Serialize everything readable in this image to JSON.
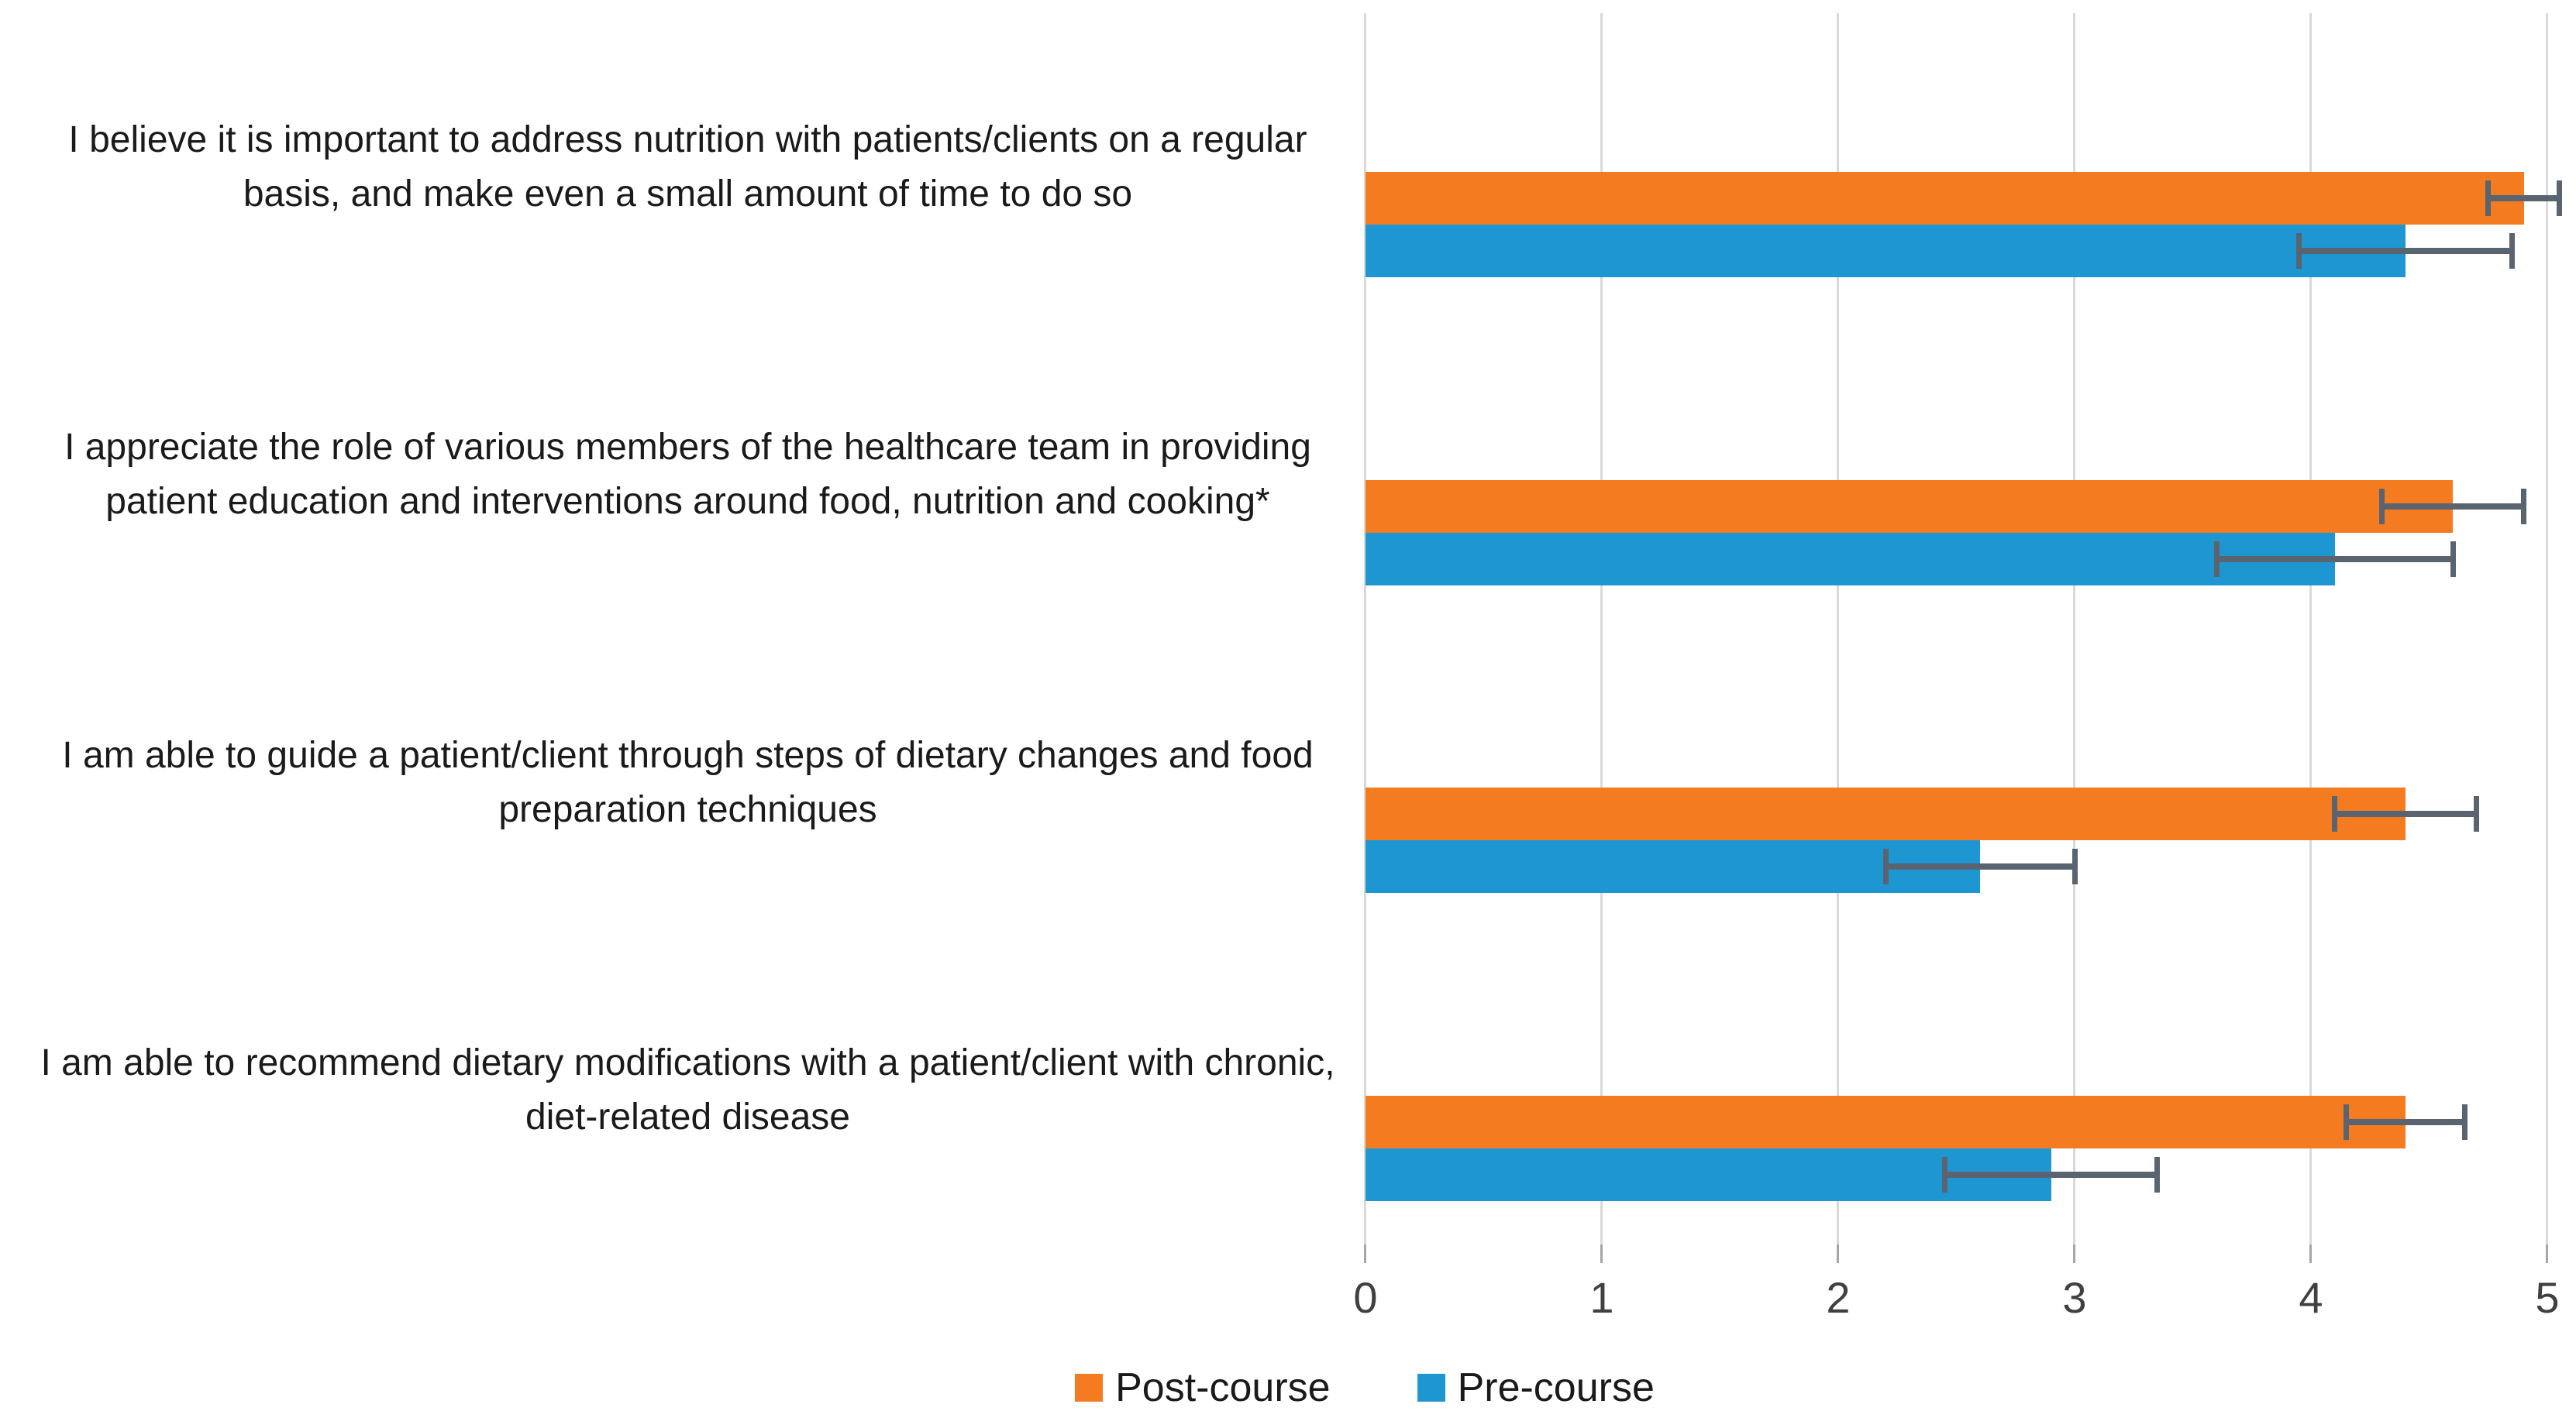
{
  "chart_data": {
    "type": "bar",
    "orientation": "horizontal",
    "categories": [
      "I believe it is important to address nutrition with patients/clients on a regular basis, and make even a small amount of time to do so",
      "I appreciate the role of various members of the healthcare team in providing patient education and interventions around food, nutrition and cooking*",
      "I am able to guide a patient/client through steps of dietary changes and food preparation techniques",
      "I am able to recommend dietary modifications with a patient/client with chronic, diet-related disease"
    ],
    "series": [
      {
        "name": "Post-course",
        "color": "#f47b20",
        "values": [
          4.9,
          4.6,
          4.4,
          4.4
        ],
        "errors": [
          0.15,
          0.3,
          0.3,
          0.25
        ]
      },
      {
        "name": "Pre-course",
        "color": "#1e96d2",
        "values": [
          4.4,
          4.1,
          2.6,
          2.9
        ],
        "errors": [
          0.45,
          0.5,
          0.4,
          0.45
        ]
      }
    ],
    "xlim": [
      0,
      5
    ],
    "x_ticks": [
      "0",
      "1",
      "2",
      "3",
      "4",
      "5"
    ],
    "grid": "vertical-only",
    "legend_position": "bottom-center",
    "colors": {
      "gridline": "#d9d9d9",
      "tick_mark": "#a6a6a6",
      "axis_text": "#404040",
      "category_text": "#1a1a1a",
      "error_bar": "#5a6470",
      "background": "#ffffff"
    }
  }
}
